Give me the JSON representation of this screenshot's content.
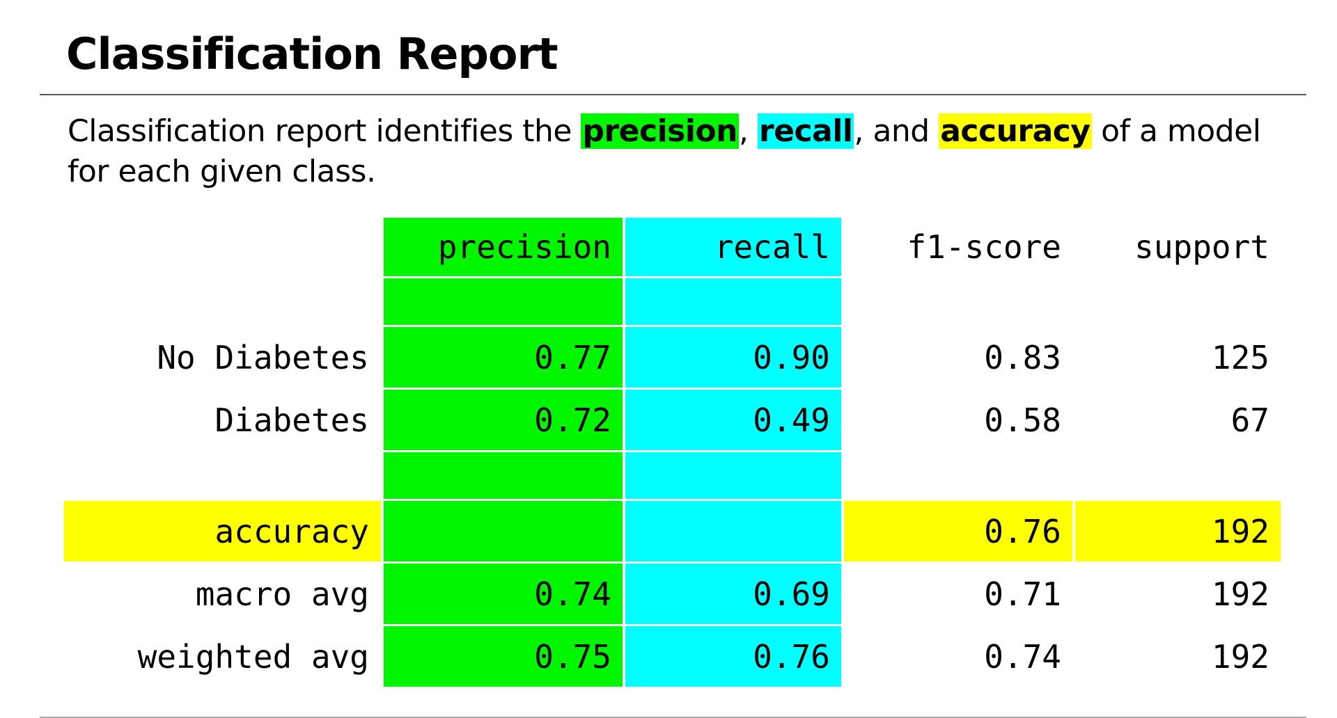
{
  "title": "Classification Report",
  "description": {
    "part1": "Classification report identifies the ",
    "precision": "precision",
    "sep1": ", ",
    "recall": "recall",
    "sep2": ", and ",
    "accuracy": "accuracy",
    "part2": " of a model for each given class."
  },
  "colors": {
    "precision": "#00f500",
    "recall": "#00ffff",
    "accuracy": "#ffff00"
  },
  "table": {
    "headers": {
      "precision": "precision",
      "recall": "recall",
      "f1": "f1-score",
      "support": "support"
    },
    "rows": {
      "no_diabetes": {
        "label": "No Diabetes",
        "precision": "0.77",
        "recall": "0.90",
        "f1": "0.83",
        "support": "125"
      },
      "diabetes": {
        "label": "Diabetes",
        "precision": "0.72",
        "recall": "0.49",
        "f1": "0.58",
        "support": "67"
      },
      "accuracy": {
        "label": "accuracy",
        "f1": "0.76",
        "support": "192"
      },
      "macro_avg": {
        "label": "macro avg",
        "precision": "0.74",
        "recall": "0.69",
        "f1": "0.71",
        "support": "192"
      },
      "weighted_avg": {
        "label": "weighted avg",
        "precision": "0.75",
        "recall": "0.76",
        "f1": "0.74",
        "support": "192"
      }
    }
  }
}
